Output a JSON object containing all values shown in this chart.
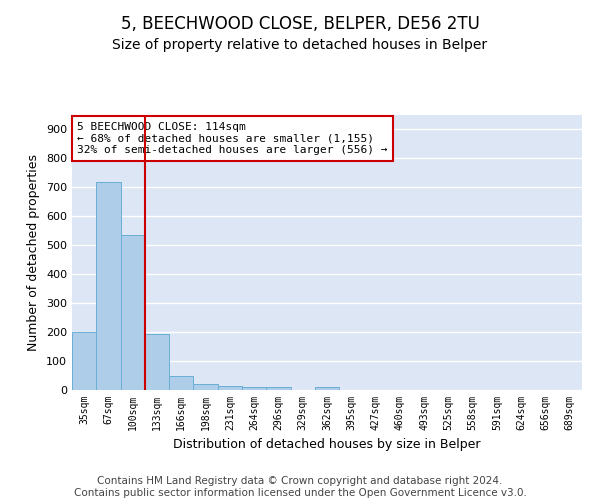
{
  "title": "5, BEECHWOOD CLOSE, BELPER, DE56 2TU",
  "subtitle": "Size of property relative to detached houses in Belper",
  "xlabel": "Distribution of detached houses by size in Belper",
  "ylabel": "Number of detached properties",
  "categories": [
    "35sqm",
    "67sqm",
    "100sqm",
    "133sqm",
    "166sqm",
    "198sqm",
    "231sqm",
    "264sqm",
    "296sqm",
    "329sqm",
    "362sqm",
    "395sqm",
    "427sqm",
    "460sqm",
    "493sqm",
    "525sqm",
    "558sqm",
    "591sqm",
    "624sqm",
    "656sqm",
    "689sqm"
  ],
  "values": [
    200,
    720,
    535,
    192,
    47,
    20,
    14,
    12,
    10,
    0,
    10,
    0,
    0,
    0,
    0,
    0,
    0,
    0,
    0,
    0,
    0
  ],
  "bar_color": "#aecde8",
  "bar_edge_color": "#6aaed6",
  "background_color": "#dce6f5",
  "grid_color": "#ffffff",
  "vline_x": 2.5,
  "vline_color": "#cc0000",
  "annotation_text": "5 BEECHWOOD CLOSE: 114sqm\n← 68% of detached houses are smaller (1,155)\n32% of semi-detached houses are larger (556) →",
  "annotation_box_color": "#ffffff",
  "annotation_box_edge_color": "#cc0000",
  "ylim": [
    0,
    950
  ],
  "yticks": [
    0,
    100,
    200,
    300,
    400,
    500,
    600,
    700,
    800,
    900
  ],
  "footer_text": "Contains HM Land Registry data © Crown copyright and database right 2024.\nContains public sector information licensed under the Open Government Licence v3.0.",
  "title_fontsize": 12,
  "subtitle_fontsize": 10,
  "xlabel_fontsize": 9,
  "ylabel_fontsize": 9,
  "footer_fontsize": 7.5
}
